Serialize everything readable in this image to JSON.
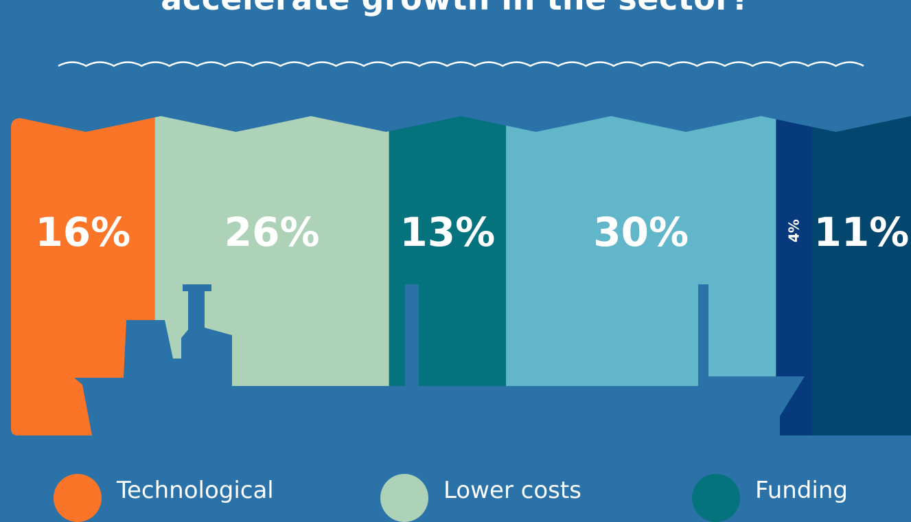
{
  "title": "accelerate growth in the sector?",
  "colors": {
    "background": "#2a72a8",
    "ship": "#2a72a8",
    "wave_line": "#ffffff",
    "label_text": "#ffffff"
  },
  "chart_data": {
    "type": "bar",
    "stacked": "100%",
    "title": "accelerate growth in the sector?",
    "unit": "%",
    "categories": [
      "Technological",
      "Lower costs",
      "Funding",
      "",
      "",
      ""
    ],
    "values": [
      16,
      26,
      13,
      30,
      4,
      11
    ],
    "value_labels": [
      "16%",
      "26%",
      "13%",
      "30%",
      "4%",
      "11%"
    ],
    "colors": [
      "#fb7528",
      "#aed2b8",
      "#05737e",
      "#62b6c9",
      "#073a7c",
      "#03476f"
    ],
    "legend_placement": "bottom"
  },
  "legend": [
    {
      "label": "Technological",
      "color": "#fb7528"
    },
    {
      "label": "Lower costs",
      "color": "#aed2b8"
    },
    {
      "label": "Funding",
      "color": "#05737e"
    }
  ]
}
